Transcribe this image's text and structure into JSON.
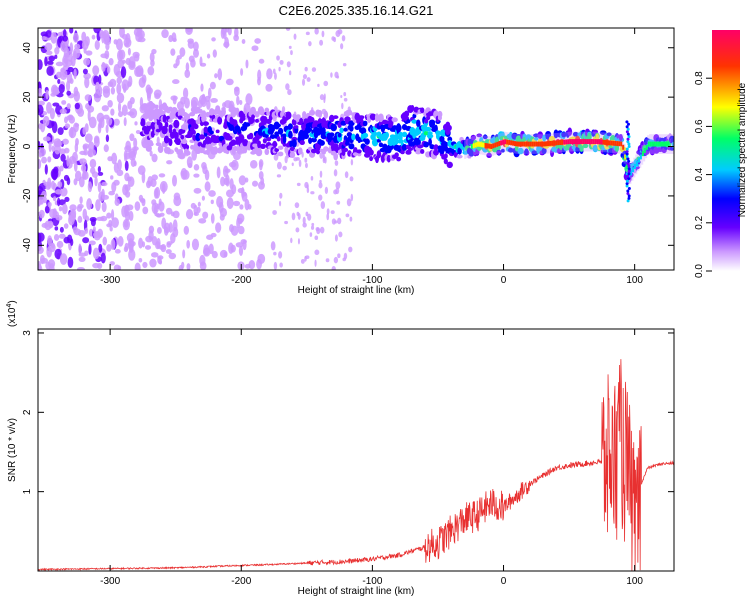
{
  "title": "C2E6.2025.335.16.14.G21",
  "chart_data": [
    {
      "type": "heatmap",
      "xlabel": "Height of straight line (km)",
      "ylabel": "Frequency (Hz)",
      "xlim": [
        -355,
        130
      ],
      "ylim": [
        -50,
        48
      ],
      "x_ticks": [
        -300,
        -200,
        -100,
        0,
        100
      ],
      "y_ticks": [
        -40,
        -20,
        0,
        20,
        40
      ],
      "colorbar": {
        "label": "Normalized spectral amplitude",
        "range": [
          0,
          1
        ],
        "ticks": [
          0.0,
          0.2,
          0.4,
          0.6,
          0.8
        ],
        "colors": [
          "#ffffff",
          "#cc99ff",
          "#6600ff",
          "#0000ff",
          "#00ccff",
          "#00ff66",
          "#ffff00",
          "#ff3300",
          "#ff0066"
        ]
      },
      "ridge": [
        {
          "x": -270,
          "f": 8,
          "a": 0.25
        },
        {
          "x": -240,
          "f": 6,
          "a": 0.3
        },
        {
          "x": -210,
          "f": 7,
          "a": 0.35
        },
        {
          "x": -180,
          "f": 6,
          "a": 0.4
        },
        {
          "x": -150,
          "f": 5,
          "a": 0.42
        },
        {
          "x": -120,
          "f": 5,
          "a": 0.45
        },
        {
          "x": -100,
          "f": 4,
          "a": 0.5
        },
        {
          "x": -80,
          "f": 3,
          "a": 0.55
        },
        {
          "x": -70,
          "f": 7,
          "a": 0.55
        },
        {
          "x": -50,
          "f": 5,
          "a": 0.5
        },
        {
          "x": -40,
          "f": 0,
          "a": 0.55
        },
        {
          "x": -30,
          "f": -1,
          "a": 0.6
        },
        {
          "x": -20,
          "f": 1,
          "a": 0.75
        },
        {
          "x": -10,
          "f": 0,
          "a": 0.9
        },
        {
          "x": 0,
          "f": 2,
          "a": 0.95
        },
        {
          "x": 10,
          "f": 1,
          "a": 0.85
        },
        {
          "x": 30,
          "f": 1,
          "a": 0.9
        },
        {
          "x": 50,
          "f": 2,
          "a": 0.95
        },
        {
          "x": 70,
          "f": 2,
          "a": 0.95
        },
        {
          "x": 90,
          "f": 1,
          "a": 0.9
        },
        {
          "x": 95,
          "f": -12,
          "a": 0.5
        },
        {
          "x": 110,
          "f": 1,
          "a": 0.6
        },
        {
          "x": 130,
          "f": 1,
          "a": 0.55
        }
      ]
    },
    {
      "type": "line",
      "xlabel": "Height of straight line (km)",
      "ylabel": "SNR (10 * v/v)",
      "y_multiplier": "(x10^4)",
      "xlim": [
        -355,
        130
      ],
      "ylim": [
        0,
        3.05
      ],
      "x_ticks": [
        -300,
        -200,
        -100,
        0,
        100
      ],
      "y_ticks": [
        1,
        2,
        3
      ],
      "color": "#e83030",
      "series": [
        {
          "x": [
            -355,
            -300,
            -250,
            -200,
            -180,
            -150,
            -120,
            -100,
            -80,
            -60,
            -50,
            -40,
            -30,
            -20,
            -10,
            0,
            10,
            20,
            30,
            40,
            50,
            60,
            70,
            80,
            85,
            90,
            95,
            100,
            105,
            110,
            120,
            130
          ],
          "y": [
            0.02,
            0.03,
            0.04,
            0.07,
            0.08,
            0.1,
            0.12,
            0.15,
            0.2,
            0.3,
            0.35,
            0.5,
            0.65,
            0.7,
            0.85,
            0.8,
            0.95,
            1.1,
            1.2,
            1.3,
            1.33,
            1.35,
            1.37,
            1.38,
            1.45,
            1.6,
            1.2,
            0.5,
            1.1,
            1.3,
            1.35,
            1.36
          ]
        }
      ]
    }
  ]
}
